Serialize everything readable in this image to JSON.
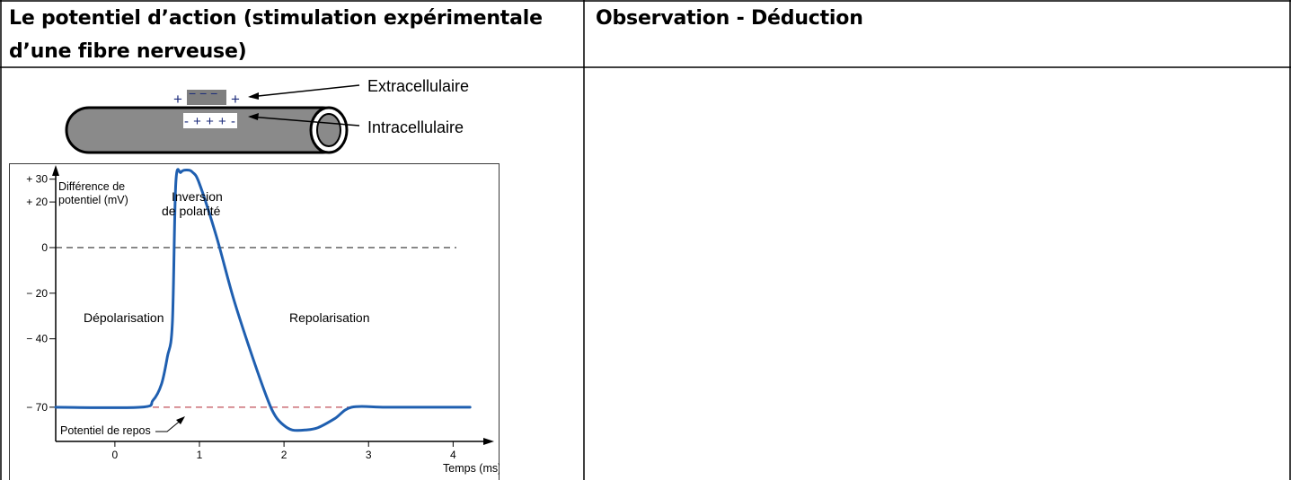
{
  "table": {
    "col1_header_line1": "Le potentiel d’action (stimulation expérimentale",
    "col1_header_line2": "d’une fibre nerveuse)",
    "col2_header": "Observation - Déduction"
  },
  "fiber_diagram": {
    "top_charges": [
      "+",
      "− − −",
      "+"
    ],
    "inner_charges": "- + + + -",
    "label_extra": "Extracellulaire",
    "label_intra": "Intracellulaire"
  },
  "chart_data": {
    "type": "line",
    "ylabel_line1": "Différence de",
    "ylabel_line2": "potentiel (mV)",
    "xlabel": "Temps (ms)",
    "ylim": [
      -85,
      35
    ],
    "xlim": [
      -0.7,
      4.4
    ],
    "yticks": [
      {
        "value": 30,
        "label": "+ 30"
      },
      {
        "value": 20,
        "label": "+ 20"
      },
      {
        "value": 0,
        "label": "0"
      },
      {
        "value": -20,
        "label": "− 20"
      },
      {
        "value": -40,
        "label": "− 40"
      },
      {
        "value": -70,
        "label": "− 70"
      }
    ],
    "xticks": [
      {
        "value": 0,
        "label": "0"
      },
      {
        "value": 1,
        "label": "1"
      },
      {
        "value": 2,
        "label": "2"
      },
      {
        "value": 3,
        "label": "3"
      },
      {
        "value": 4,
        "label": "4"
      }
    ],
    "reference_lines": [
      {
        "value": 0,
        "color": "#555555"
      },
      {
        "value": -70,
        "color": "#c0505a"
      }
    ],
    "series": [
      {
        "color": "#1f5fb0",
        "x": [
          -0.7,
          0.3,
          0.45,
          0.55,
          0.62,
          0.68,
          0.72,
          0.78,
          0.85,
          0.92,
          1.0,
          1.2,
          1.4,
          1.6,
          1.8,
          1.9,
          2.0,
          2.1,
          2.25,
          2.4,
          2.6,
          2.8,
          3.2,
          3.8,
          4.2
        ],
        "y": [
          -70,
          -70,
          -67,
          -60,
          -48,
          -33,
          28,
          33,
          34,
          33,
          28,
          5,
          -22,
          -45,
          -66,
          -74,
          -78,
          -80,
          -80,
          -79,
          -75,
          -70,
          -70,
          -70,
          -70
        ]
      }
    ],
    "annotations": {
      "peak_line1": "Inversion",
      "peak_line2": "de polarité",
      "left_phase": "Dépolarisation",
      "right_phase": "Repolarisation",
      "rest_label": "Potentiel de repos"
    }
  }
}
